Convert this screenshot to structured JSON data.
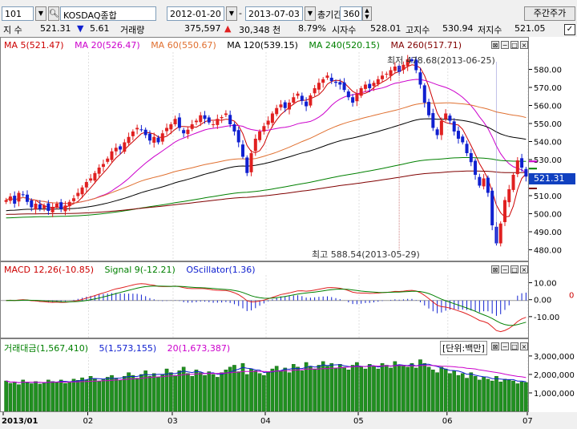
{
  "toolbar": {
    "code": "101",
    "stock_name": "KOSDAQ종합",
    "start_date": "2012-01-20",
    "dash": "-",
    "end_date": "2013-07-03",
    "period_label": "총기간",
    "period_value": "360",
    "weekly_btn": "주간주가"
  },
  "quote": {
    "index_label": "지 수",
    "index_value": "521.31",
    "change_arrow": "▼",
    "change": "5.61",
    "volume_label": "거래량",
    "volume": "375,597",
    "vol_arrow": "▲",
    "vol_change": "30,348 천",
    "pct": "8.79%",
    "open_label": "시자수",
    "open": "528.01",
    "high_label": "고지수",
    "high": "530.94",
    "low_label": "저지수",
    "low": "521.05"
  },
  "colors": {
    "up": "#e02020",
    "down": "#1020d0",
    "ma5": "#cc0000",
    "ma20": "#cc00cc",
    "ma60": "#e07030",
    "ma120": "#000000",
    "ma240": "#008000",
    "ma260": "#800000",
    "vol_bar": "#209020"
  },
  "price_legend": [
    {
      "text": "MA 5(521.47)",
      "color": "#cc0000"
    },
    {
      "text": "MA 20(526.47)",
      "color": "#cc00cc"
    },
    {
      "text": "MA 60(550.67)",
      "color": "#e07030"
    },
    {
      "text": "MA 120(539.15)",
      "color": "#000000"
    },
    {
      "text": "MA 240(520.15)",
      "color": "#008000"
    },
    {
      "text": "MA 260(517.71)",
      "color": "#800000"
    }
  ],
  "annotations": {
    "low": "최저 478.68(2013-06-25)",
    "high": "최고 588.54(2013-05-29)"
  },
  "macd_legend": [
    {
      "text": "MACD 12,26(-10.85)",
      "color": "#cc0000"
    },
    {
      "text": "Signal 9(-12.21)",
      "color": "#008000"
    },
    {
      "text": "OScillator(1.36)",
      "color": "#1020d0"
    }
  ],
  "vol_legend": [
    {
      "text": "거래대금(1,567,410)",
      "color": "#008000"
    },
    {
      "text": "5(1,573,155)",
      "color": "#1020d0"
    },
    {
      "text": "20(1,673,387)",
      "color": "#cc00cc"
    }
  ],
  "vol_unit": "[단위:백만]",
  "current_price_tag": "521.31",
  "macd_zero_tag": "0",
  "chart_data": [
    {
      "type": "candlestick",
      "title": "",
      "x": [
        "2013/01",
        "02",
        "03",
        "04",
        "05",
        "06",
        "07"
      ],
      "ylim": [
        478,
        590
      ],
      "yticks": [
        "580.00",
        "570.00",
        "560.00",
        "550.00",
        "540.00",
        "530.00",
        "520.00",
        "510.00",
        "500.00",
        "490.00",
        "480.00"
      ],
      "closes": [
        508,
        510,
        506,
        512,
        511,
        507,
        504,
        506,
        503,
        505,
        502,
        504,
        506,
        503,
        505,
        507,
        509,
        512,
        515,
        518,
        520,
        523,
        526,
        528,
        531,
        535,
        537,
        536,
        540,
        543,
        546,
        548,
        547,
        544,
        541,
        543,
        540,
        545,
        548,
        550,
        553,
        548,
        545,
        547,
        550,
        552,
        555,
        553,
        551,
        550,
        553,
        554,
        556,
        550,
        546,
        540,
        532,
        523,
        534,
        542,
        546,
        549,
        552,
        556,
        559,
        561,
        559,
        562,
        565,
        567,
        563,
        560,
        566,
        570,
        573,
        575,
        577,
        574,
        573,
        572,
        569,
        565,
        562,
        567,
        570,
        572,
        570,
        573,
        575,
        577,
        578,
        580,
        582,
        579,
        583,
        586,
        585,
        580,
        572,
        562,
        555,
        548,
        544,
        552,
        556,
        552,
        546,
        542,
        540,
        534,
        529,
        522,
        516,
        520,
        512,
        494,
        484,
        495,
        508,
        514,
        522,
        530,
        526,
        521
      ],
      "series": [
        {
          "name": "MA 5",
          "last": 521.47
        },
        {
          "name": "MA 20",
          "last": 526.47
        },
        {
          "name": "MA 60",
          "last": 550.67
        },
        {
          "name": "MA 120",
          "last": 539.15
        },
        {
          "name": "MA 240",
          "last": 520.15
        },
        {
          "name": "MA 260",
          "last": 517.71
        }
      ]
    },
    {
      "type": "line",
      "title": "",
      "ylim": [
        -20,
        15
      ],
      "yticks": [
        "10.00",
        "0.00",
        "-10.00"
      ],
      "series": [
        {
          "name": "MACD 12,26",
          "last": -10.85
        },
        {
          "name": "Signal 9",
          "last": -12.21
        },
        {
          "name": "OScillator",
          "last": 1.36
        }
      ]
    },
    {
      "type": "bar",
      "title": "",
      "ylim": [
        0,
        3300000
      ],
      "yticks": [
        "3,000,000",
        "2,000,000",
        "1,000,000"
      ],
      "volume": [
        1650000,
        1520000,
        1600000,
        1450000,
        1700000,
        1580000,
        1500000,
        1620000,
        1480000,
        1550000,
        1700000,
        1620000,
        1580000,
        1700000,
        1520000,
        1600000,
        1750000,
        1680000,
        1820000,
        1700000,
        1900000,
        1780000,
        1650000,
        1720000,
        1850000,
        1950000,
        1800000,
        1700000,
        1900000,
        2100000,
        1950000,
        1800000,
        2000000,
        2200000,
        1900000,
        2050000,
        1850000,
        2000000,
        2300000,
        2100000,
        1950000,
        2200000,
        2400000,
        2050000,
        1900000,
        2250000,
        2100000,
        1950000,
        2150000,
        2000000,
        1850000,
        2100000,
        2250000,
        2400000,
        2500000,
        2150000,
        2600000,
        2000000,
        2300000,
        2200000,
        2050000,
        1950000,
        2150000,
        2300000,
        2450000,
        2200000,
        2350000,
        2100000,
        2550000,
        2400000,
        2200000,
        2650000,
        2450000,
        2300000,
        2500000,
        2700000,
        2450000,
        2600000,
        2350000,
        2550000,
        2400000,
        2250000,
        2500000,
        2650000,
        2400000,
        2300000,
        2550000,
        2450000,
        2300000,
        2600000,
        2500000,
        2350000,
        2700000,
        2500000,
        2450000,
        2400000,
        2600000,
        2350000,
        2800000,
        2600000,
        2400000,
        2250000,
        2100000,
        2400000,
        2300000,
        2050000,
        2200000,
        1950000,
        2050000,
        1800000,
        2100000,
        1900000,
        1700000,
        1850000,
        1750000,
        1650000,
        1900000,
        1600000,
        1750000,
        1700000,
        1650000,
        1500000,
        1600000,
        1567410
      ]
    }
  ]
}
